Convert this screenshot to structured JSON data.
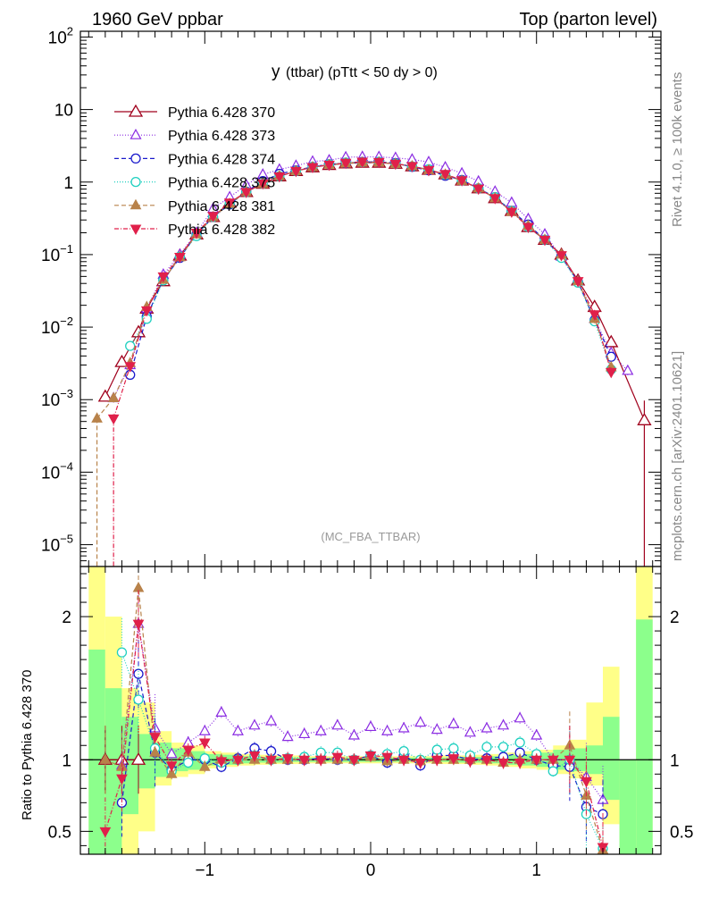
{
  "header": {
    "left": "1960 GeV ppbar",
    "right": "Top (parton level)"
  },
  "side_labels": {
    "rivet": "Rivet 4.1.0, ≥ 100k events",
    "mcplots": "mcplots.cern.ch [arXiv:2401.10621]"
  },
  "colors": {
    "s370": "#a0001c",
    "s373": "#8a2be2",
    "s374": "#1a1acc",
    "s375": "#20d0c0",
    "s381": "#b8824a",
    "s382": "#e0204a",
    "band_yellow": "#ffff88",
    "band_green": "#8cff8c"
  },
  "chart_data": [
    {
      "type": "line",
      "panel": "main",
      "title_main": "y",
      "title_rest": "(ttbar) (pTtt < 50 dy > 0)",
      "watermark": "(MC_FBA_TTBAR)",
      "yscale": "log",
      "xlim": [
        -1.75,
        1.75
      ],
      "ylim": [
        5e-06,
        120
      ],
      "yticks": [
        {
          "value": 1e-05,
          "base": "10",
          "exp": "−5"
        },
        {
          "value": 0.0001,
          "base": "10",
          "exp": "−4"
        },
        {
          "value": 0.001,
          "base": "10",
          "exp": "−3"
        },
        {
          "value": 0.01,
          "base": "10",
          "exp": "−2"
        },
        {
          "value": 0.1,
          "base": "10",
          "exp": "−1"
        },
        {
          "value": 1,
          "base": "1",
          "exp": ""
        },
        {
          "value": 10,
          "base": "10",
          "exp": ""
        },
        {
          "value": 100,
          "base": "10",
          "exp": "2"
        }
      ],
      "legend_position": "top-left",
      "series": [
        {
          "key": "s370",
          "name": "Pythia 6.428 370",
          "marker": "triangle-open",
          "dash": "",
          "x": [
            -1.6,
            -1.5,
            -1.4,
            -1.35,
            -1.25,
            -1.15,
            -1.05,
            -0.95,
            -0.85,
            -0.75,
            -0.65,
            -0.55,
            -0.45,
            -0.35,
            -0.25,
            -0.15,
            -0.05,
            0.05,
            0.15,
            0.25,
            0.35,
            0.45,
            0.55,
            0.65,
            0.75,
            0.85,
            0.95,
            1.05,
            1.15,
            1.25,
            1.35,
            1.45,
            1.65
          ],
          "y": [
            0.0011,
            0.0033,
            0.0085,
            0.018,
            0.043,
            0.097,
            0.19,
            0.33,
            0.52,
            0.73,
            0.95,
            1.2,
            1.42,
            1.6,
            1.72,
            1.81,
            1.85,
            1.85,
            1.79,
            1.65,
            1.48,
            1.28,
            1.05,
            0.82,
            0.6,
            0.4,
            0.24,
            0.16,
            0.1,
            0.044,
            0.019,
            0.0062,
            0.00052
          ]
        },
        {
          "key": "s373",
          "name": "Pythia 6.428 373",
          "marker": "triangle-open-small",
          "dash": "1,2",
          "x": [
            -1.55,
            -1.45,
            -1.35,
            -1.25,
            -1.15,
            -1.05,
            -0.95,
            -0.85,
            -0.75,
            -0.65,
            -0.55,
            -0.45,
            -0.35,
            -0.25,
            -0.15,
            -0.05,
            0.05,
            0.15,
            0.25,
            0.35,
            0.45,
            0.55,
            0.65,
            0.75,
            0.85,
            0.95,
            1.05,
            1.15,
            1.25,
            1.35,
            1.45,
            1.55
          ],
          "y": [
            0.00105,
            0.003,
            0.018,
            0.053,
            0.1,
            0.2,
            0.43,
            0.62,
            0.91,
            1.27,
            1.49,
            1.68,
            1.92,
            2.0,
            2.2,
            2.23,
            2.22,
            2.16,
            2.05,
            1.89,
            1.6,
            1.32,
            1.02,
            0.74,
            0.52,
            0.31,
            0.19,
            0.094,
            0.043,
            0.013,
            0.0044,
            0.0025
          ]
        },
        {
          "key": "s374",
          "name": "Pythia 6.428 374",
          "marker": "circle-open",
          "dash": "5,3",
          "x": [
            -1.45,
            -1.35,
            -1.25,
            -1.15,
            -1.05,
            -0.95,
            -0.85,
            -0.75,
            -0.65,
            -0.55,
            -0.45,
            -0.35,
            -0.25,
            -0.15,
            -0.05,
            0.05,
            0.15,
            0.25,
            0.35,
            0.45,
            0.55,
            0.65,
            0.75,
            0.85,
            0.95,
            1.05,
            1.15,
            1.25,
            1.35,
            1.45
          ],
          "y": [
            0.0022,
            0.014,
            0.045,
            0.09,
            0.19,
            0.33,
            0.49,
            0.74,
            1.03,
            1.3,
            1.45,
            1.62,
            1.76,
            1.82,
            1.9,
            1.9,
            1.83,
            1.62,
            1.45,
            1.22,
            1.07,
            0.82,
            0.62,
            0.4,
            0.26,
            0.16,
            0.095,
            0.042,
            0.0125,
            0.0039
          ]
        },
        {
          "key": "s375",
          "name": "Pythia 6.428 375",
          "marker": "circle-open",
          "dash": "1,2",
          "x": [
            -1.45,
            -1.35,
            -1.25,
            -1.15,
            -1.05,
            -0.95,
            -0.85,
            -0.75,
            -0.65,
            -0.55,
            -0.45,
            -0.35,
            -0.25,
            -0.15,
            -0.05,
            0.05,
            0.15,
            0.25,
            0.35,
            0.45,
            0.55,
            0.65,
            0.75,
            0.85,
            0.95,
            1.05,
            1.15,
            1.25,
            1.35,
            1.45
          ],
          "y": [
            0.0055,
            0.013,
            0.044,
            0.094,
            0.18,
            0.33,
            0.5,
            0.73,
            0.95,
            1.2,
            1.42,
            1.62,
            1.76,
            1.86,
            1.88,
            1.9,
            1.8,
            1.65,
            1.5,
            1.26,
            1.05,
            0.82,
            0.62,
            0.4,
            0.24,
            0.16,
            0.09,
            0.041,
            0.012,
            0.0026
          ]
        },
        {
          "key": "s381",
          "name": "Pythia 6.428 381",
          "marker": "triangle-filled",
          "dash": "5,3",
          "x": [
            -1.65,
            -1.55,
            -1.45,
            -1.35,
            -1.25,
            -1.15,
            -1.05,
            -0.95,
            -0.85,
            -0.75,
            -0.65,
            -0.55,
            -0.45,
            -0.35,
            -0.25,
            -0.15,
            -0.05,
            0.05,
            0.15,
            0.25,
            0.35,
            0.45,
            0.55,
            0.65,
            0.75,
            0.85,
            0.95,
            1.05,
            1.15,
            1.25,
            1.35,
            1.45
          ],
          "y": [
            0.00055,
            0.00105,
            0.0032,
            0.019,
            0.045,
            0.092,
            0.19,
            0.33,
            0.5,
            0.73,
            0.94,
            1.21,
            1.42,
            1.61,
            1.73,
            1.81,
            1.86,
            1.87,
            1.78,
            1.66,
            1.46,
            1.27,
            1.04,
            0.82,
            0.6,
            0.39,
            0.25,
            0.16,
            0.1,
            0.043,
            0.013,
            0.0028
          ]
        },
        {
          "key": "s382",
          "name": "Pythia 6.428 382",
          "marker": "triangle-down-filled",
          "dash": "5,2,1,2",
          "x": [
            -1.55,
            -1.45,
            -1.35,
            -1.25,
            -1.15,
            -1.05,
            -0.95,
            -0.85,
            -0.75,
            -0.65,
            -0.55,
            -0.45,
            -0.35,
            -0.25,
            -0.15,
            -0.05,
            0.05,
            0.15,
            0.25,
            0.35,
            0.45,
            0.55,
            0.65,
            0.75,
            0.85,
            0.95,
            1.05,
            1.15,
            1.25,
            1.35,
            1.45
          ],
          "y": [
            0.00055,
            0.0029,
            0.017,
            0.05,
            0.093,
            0.2,
            0.34,
            0.52,
            0.73,
            0.96,
            1.2,
            1.42,
            1.61,
            1.73,
            1.84,
            1.91,
            1.89,
            1.79,
            1.66,
            1.46,
            1.29,
            1.06,
            0.81,
            0.6,
            0.39,
            0.24,
            0.16,
            0.098,
            0.043,
            0.015,
            0.0024
          ]
        }
      ]
    },
    {
      "type": "line",
      "panel": "ratio",
      "ylabel": "Ratio to Pythia 6.428 370",
      "xlim": [
        -1.75,
        1.75
      ],
      "ylim": [
        0.34,
        2.35
      ],
      "xticks": [
        {
          "value": -1,
          "label": "−1"
        },
        {
          "value": 0,
          "label": "0"
        },
        {
          "value": 1,
          "label": "1"
        }
      ],
      "yticks": [
        {
          "value": 0.5,
          "label": "0.5"
        },
        {
          "value": 1,
          "label": "1"
        },
        {
          "value": 2,
          "label": "2"
        }
      ],
      "band_x_edges": [
        -1.7,
        -1.6,
        -1.5,
        -1.4,
        -1.3,
        -1.2,
        -1.1,
        -1.0,
        -0.9,
        -0.8,
        -0.7,
        -0.6,
        -0.5,
        -0.4,
        -0.3,
        -0.2,
        -0.1,
        0.0,
        0.1,
        0.2,
        0.3,
        0.4,
        0.5,
        0.6,
        0.7,
        0.8,
        0.9,
        1.0,
        1.1,
        1.2,
        1.3,
        1.4,
        1.5,
        1.6,
        1.7
      ],
      "band_yellow_lo": [
        0.3,
        0.3,
        0.3,
        0.5,
        0.82,
        0.88,
        0.9,
        0.94,
        0.95,
        0.96,
        0.965,
        0.97,
        0.97,
        0.975,
        0.975,
        0.975,
        0.975,
        0.975,
        0.975,
        0.975,
        0.975,
        0.97,
        0.97,
        0.965,
        0.96,
        0.95,
        0.94,
        0.93,
        0.9,
        0.87,
        0.82,
        0.55,
        0.3,
        0.3
      ],
      "band_yellow_hi": [
        2.4,
        2.0,
        1.5,
        1.4,
        1.2,
        1.12,
        1.1,
        1.06,
        1.05,
        1.04,
        1.035,
        1.03,
        1.03,
        1.025,
        1.025,
        1.025,
        1.025,
        1.025,
        1.025,
        1.025,
        1.025,
        1.03,
        1.03,
        1.035,
        1.04,
        1.05,
        1.06,
        1.07,
        1.1,
        1.14,
        1.4,
        1.65,
        1.0,
        2.4
      ],
      "band_green_lo": [
        0.3,
        0.3,
        0.62,
        0.8,
        0.88,
        0.92,
        0.93,
        0.96,
        0.965,
        0.975,
        0.98,
        0.98,
        0.985,
        0.985,
        0.985,
        0.985,
        0.985,
        0.985,
        0.985,
        0.985,
        0.985,
        0.985,
        0.98,
        0.98,
        0.975,
        0.965,
        0.96,
        0.95,
        0.93,
        0.92,
        0.9,
        0.72,
        0.3,
        0.3
      ],
      "band_green_hi": [
        1.77,
        1.5,
        1.3,
        1.18,
        1.12,
        1.08,
        1.06,
        1.04,
        1.035,
        1.025,
        1.02,
        1.02,
        1.015,
        1.015,
        1.015,
        1.015,
        1.015,
        1.015,
        1.015,
        1.015,
        1.015,
        1.015,
        1.02,
        1.02,
        1.025,
        1.035,
        1.04,
        1.05,
        1.07,
        1.08,
        1.1,
        1.3,
        1.0,
        1.98
      ],
      "series": [
        {
          "key": "s370",
          "marker": "triangle-open",
          "dash": "",
          "x": [
            -1.6,
            -1.5,
            -1.4
          ],
          "y": [
            1.0,
            1.0,
            1.0
          ]
        },
        {
          "key": "s373",
          "marker": "triangle-open-small",
          "dash": "1,2",
          "x": [
            -1.5,
            -1.4,
            -1.3,
            -1.2,
            -1.1,
            -1.0,
            -0.9,
            -0.8,
            -0.7,
            -0.6,
            -0.5,
            -0.4,
            -0.3,
            -0.2,
            -0.1,
            0.0,
            0.1,
            0.2,
            0.3,
            0.4,
            0.5,
            0.6,
            0.7,
            0.8,
            0.9,
            1.0,
            1.1,
            1.2,
            1.3,
            1.4
          ],
          "y": [
            0.96,
            1.95,
            1.22,
            1.04,
            1.12,
            1.2,
            1.33,
            1.2,
            1.24,
            1.27,
            1.16,
            1.18,
            1.2,
            1.24,
            1.17,
            1.23,
            1.2,
            1.22,
            1.26,
            1.21,
            1.25,
            1.19,
            1.22,
            1.24,
            1.29,
            1.17,
            1.0,
            1.0,
            0.88,
            0.72
          ]
        },
        {
          "key": "s374",
          "marker": "circle-open",
          "dash": "5,3",
          "x": [
            -1.5,
            -1.4,
            -1.3,
            -1.2,
            -1.1,
            -1.0,
            -0.9,
            -0.8,
            -0.7,
            -0.6,
            -0.5,
            -0.4,
            -0.3,
            -0.2,
            -0.1,
            0.0,
            0.1,
            0.2,
            0.3,
            0.4,
            0.5,
            0.6,
            0.7,
            0.8,
            0.9,
            1.0,
            1.1,
            1.2,
            1.3,
            1.4
          ],
          "y": [
            0.7,
            1.6,
            1.05,
            0.93,
            1.0,
            1.0,
            0.95,
            1.01,
            1.08,
            1.06,
            1.0,
            1.0,
            1.01,
            1.0,
            1.0,
            1.03,
            0.98,
            1.03,
            0.96,
            1.03,
            1.03,
            1.0,
            1.01,
            1.02,
            1.05,
            1.0,
            0.96,
            0.95,
            0.67,
            0.62
          ]
        },
        {
          "key": "s375",
          "marker": "circle-open",
          "dash": "1,2",
          "x": [
            -1.5,
            -1.4,
            -1.3,
            -1.2,
            -1.1,
            -1.0,
            -0.9,
            -0.8,
            -0.7,
            -0.6,
            -0.5,
            -0.4,
            -0.3,
            -0.2,
            -0.1,
            0.0,
            0.1,
            0.2,
            0.3,
            0.4,
            0.5,
            0.6,
            0.7,
            0.8,
            0.9,
            1.0,
            1.1,
            1.2,
            1.3,
            1.4
          ],
          "y": [
            1.75,
            1.42,
            1.08,
            0.92,
            0.98,
            1.01,
            0.98,
            1.0,
            1.03,
            1.0,
            1.01,
            1.02,
            1.05,
            1.05,
            1.0,
            1.03,
            1.04,
            1.06,
            1.0,
            1.07,
            1.08,
            1.03,
            1.09,
            1.09,
            1.12,
            1.04,
            0.92,
            1.0,
            0.62,
            0.38
          ]
        },
        {
          "key": "s381",
          "marker": "triangle-filled",
          "dash": "5,3",
          "x": [
            -1.6,
            -1.5,
            -1.4,
            -1.3,
            -1.2,
            -1.1,
            -1.0,
            -0.9,
            -0.8,
            -0.7,
            -0.6,
            -0.5,
            -0.4,
            -0.3,
            -0.2,
            -0.1,
            0.0,
            0.1,
            0.2,
            0.3,
            0.4,
            0.5,
            0.6,
            0.7,
            0.8,
            0.9,
            1.0,
            1.1,
            1.2,
            1.3,
            1.4
          ],
          "y": [
            1.0,
            0.95,
            2.2,
            1.05,
            0.9,
            1.05,
            0.95,
            1.0,
            1.0,
            1.0,
            1.0,
            1.0,
            1.0,
            1.0,
            1.0,
            1.0,
            1.02,
            0.99,
            1.0,
            0.99,
            1.0,
            1.0,
            1.0,
            1.0,
            0.98,
            1.0,
            1.0,
            1.0,
            1.1,
            0.75,
            0.37
          ]
        },
        {
          "key": "s382",
          "marker": "triangle-down-filled",
          "dash": "5,2,1,2",
          "x": [
            -1.6,
            -1.5,
            -1.4,
            -1.3,
            -1.2,
            -1.1,
            -1.0,
            -0.9,
            -0.8,
            -0.7,
            -0.6,
            -0.5,
            -0.4,
            -0.3,
            -0.2,
            -0.1,
            0.0,
            0.1,
            0.2,
            0.3,
            0.4,
            0.5,
            0.6,
            0.7,
            0.8,
            0.9,
            1.0,
            1.1,
            1.2,
            1.3,
            1.4
          ],
          "y": [
            0.5,
            0.87,
            1.95,
            1.16,
            0.96,
            1.07,
            1.12,
            0.99,
            1.0,
            1.03,
            1.0,
            1.01,
            1.0,
            1.0,
            1.02,
            1.0,
            1.03,
            1.02,
            1.0,
            0.98,
            1.0,
            1.01,
            0.99,
            1.0,
            0.98,
            0.98,
            1.0,
            1.0,
            1.0,
            0.85,
            0.39
          ]
        }
      ]
    }
  ]
}
